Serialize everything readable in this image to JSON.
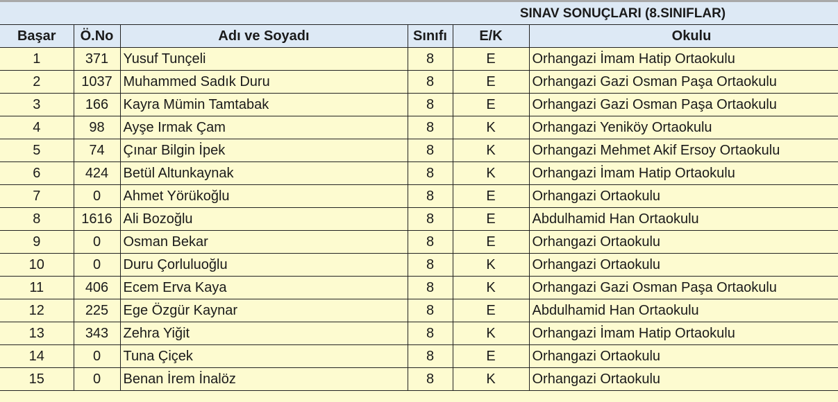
{
  "title": "SINAV SONUÇLARI (8.SINIFLAR)",
  "colors": {
    "header_bg": "#dde9f5",
    "row_bg": "#fdfbd0",
    "border": "#222222"
  },
  "columns": [
    "Başar",
    "Ö.No",
    "Adı ve Soyadı",
    "Sınıfı",
    "E/K",
    "Okulu"
  ],
  "rows": [
    {
      "rank": "1",
      "no": "371",
      "name": "Yusuf Tunçeli",
      "class": "8",
      "gender": "E",
      "school": "Orhangazi İmam Hatip Ortaokulu"
    },
    {
      "rank": "2",
      "no": "1037",
      "name": "Muhammed Sadık Duru",
      "class": "8",
      "gender": "E",
      "school": "Orhangazi Gazi Osman Paşa Ortaokulu"
    },
    {
      "rank": "3",
      "no": "166",
      "name": "Kayra Mümin Tamtabak",
      "class": "8",
      "gender": "E",
      "school": "Orhangazi Gazi Osman Paşa Ortaokulu"
    },
    {
      "rank": "4",
      "no": "98",
      "name": "Ayşe Irmak Çam",
      "class": "8",
      "gender": "K",
      "school": "Orhangazi Yeniköy Ortaokulu"
    },
    {
      "rank": "5",
      "no": "74",
      "name": "Çınar Bilgin İpek",
      "class": "8",
      "gender": "K",
      "school": "Orhangazi Mehmet Akif Ersoy Ortaokulu"
    },
    {
      "rank": "6",
      "no": "424",
      "name": "Betül Altunkaynak",
      "class": "8",
      "gender": "K",
      "school": "Orhangazi İmam Hatip Ortaokulu"
    },
    {
      "rank": "7",
      "no": "0",
      "name": "Ahmet Yörükoğlu",
      "class": "8",
      "gender": "E",
      "school": "Orhangazi Ortaokulu"
    },
    {
      "rank": "8",
      "no": "1616",
      "name": "Ali Bozoğlu",
      "class": "8",
      "gender": "E",
      "school": "Abdulhamid Han Ortaokulu"
    },
    {
      "rank": "9",
      "no": "0",
      "name": "Osman Bekar",
      "class": "8",
      "gender": "E",
      "school": "Orhangazi Ortaokulu"
    },
    {
      "rank": "10",
      "no": "0",
      "name": "Duru Çorluluoğlu",
      "class": "8",
      "gender": "K",
      "school": "Orhangazi Ortaokulu"
    },
    {
      "rank": "11",
      "no": "406",
      "name": "Ecem Erva Kaya",
      "class": "8",
      "gender": "K",
      "school": "Orhangazi Gazi Osman Paşa Ortaokulu"
    },
    {
      "rank": "12",
      "no": "225",
      "name": "Ege Özgür Kaynar",
      "class": "8",
      "gender": "E",
      "school": "Abdulhamid Han Ortaokulu"
    },
    {
      "rank": "13",
      "no": "343",
      "name": "Zehra Yiğit",
      "class": "8",
      "gender": "K",
      "school": "Orhangazi İmam Hatip Ortaokulu"
    },
    {
      "rank": "14",
      "no": "0",
      "name": "Tuna Çiçek",
      "class": "8",
      "gender": "E",
      "school": "Orhangazi Ortaokulu"
    },
    {
      "rank": "15",
      "no": "0",
      "name": "Benan İrem İnalöz",
      "class": "8",
      "gender": "K",
      "school": "Orhangazi Ortaokulu"
    }
  ]
}
